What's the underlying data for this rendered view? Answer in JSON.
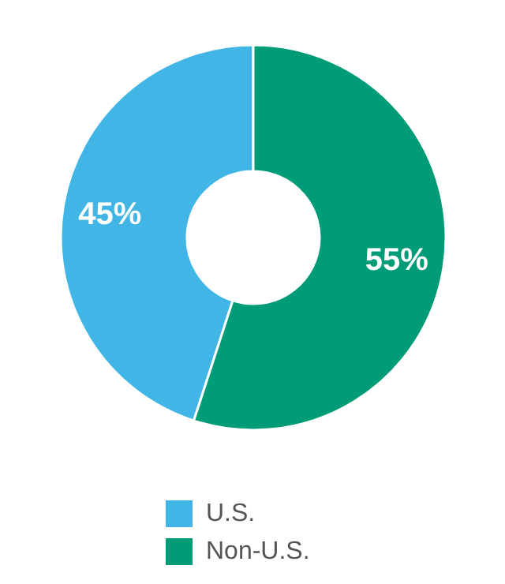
{
  "chart_data": {
    "type": "donut",
    "categories": [
      "U.S.",
      "Non-U.S."
    ],
    "values": [
      45,
      55
    ],
    "colors": [
      "#41b6e6",
      "#009b77"
    ],
    "value_labels": [
      "45%",
      "55%"
    ],
    "legend": "bottom"
  }
}
